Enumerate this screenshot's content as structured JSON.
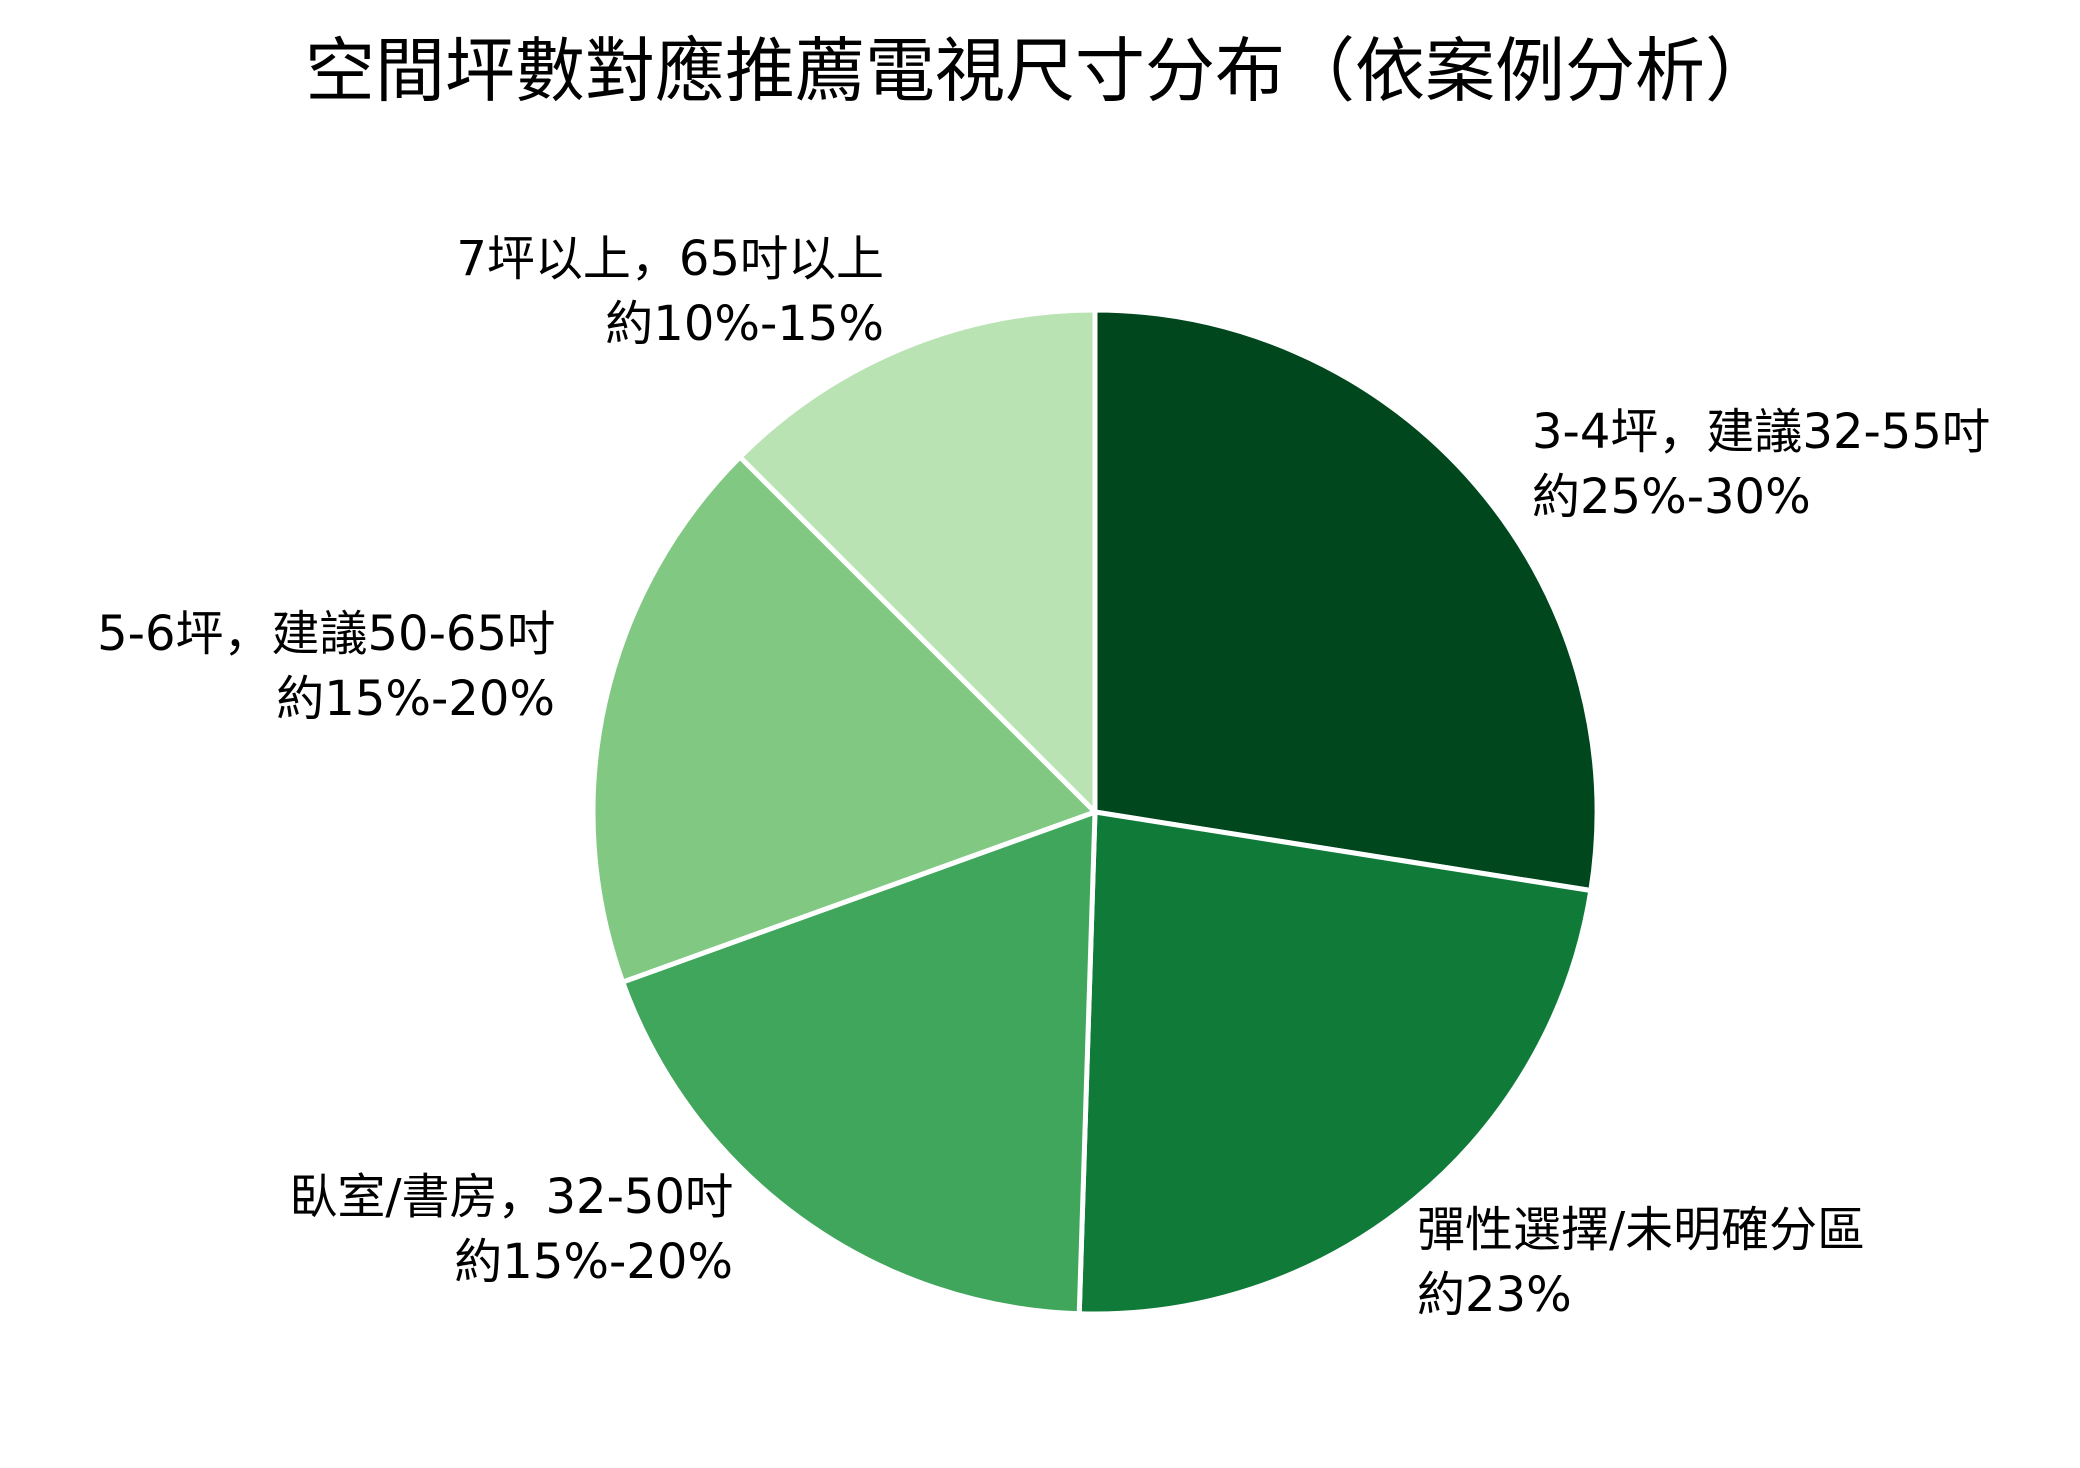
{
  "chart_data": {
    "type": "pie",
    "title": "空間坪數對應推薦電視尺寸分布（依案例分析）",
    "slices": [
      {
        "line1": "3-4坪，建議32-55吋",
        "line2": "約25%-30%",
        "value": 27.5,
        "color": "#00471e"
      },
      {
        "line1": "彈性選擇/未明確分區",
        "line2": "約23%",
        "value": 23,
        "color": "#107a39"
      },
      {
        "line1": "臥室/書房，32-50吋",
        "line2": "約15%-20%",
        "value": 19,
        "color": "#3fa65c"
      },
      {
        "line1": "5-6坪，建議50-65吋",
        "line2": "約15%-20%",
        "value": 18,
        "color": "#81c883"
      },
      {
        "line1": "7坪以上，65吋以上",
        "line2": "約10%-15%",
        "value": 12.5,
        "color": "#b9e3b3"
      }
    ],
    "start_angle_deg": 0,
    "direction": "clockwise",
    "legend": "none"
  }
}
